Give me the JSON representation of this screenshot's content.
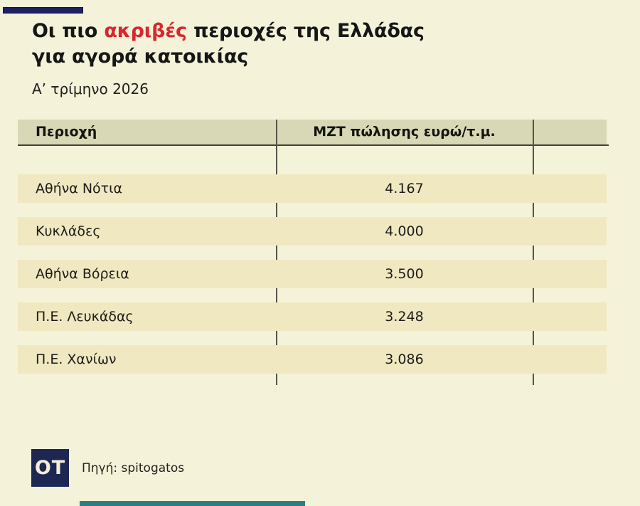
{
  "page": {
    "background": "#f4f2d9",
    "accent_navy": "#1b2161",
    "accent_red": "#d7282f",
    "accent_teal": "#2f7e7c",
    "stripe_color": "#f0e8c1",
    "header_band_color": "#d9d8b6"
  },
  "header": {
    "title_prefix": "Οι πιο",
    "title_highlight": "ακριβές",
    "title_suffix": "περιοχές της Ελλάδας",
    "title_line2": "για αγορά κατοικίας",
    "subtitle": "Α’ τρίμηνο 2026"
  },
  "table": {
    "columns": [
      "Περιοχή",
      "ΜΖΤ πώλησης ευρώ/τ.μ."
    ],
    "rows": [
      {
        "region": "Αθήνα Νότια",
        "price": "4.167"
      },
      {
        "region": "Κυκλάδες",
        "price": "4.000"
      },
      {
        "region": "Αθήνα Βόρεια",
        "price": "3.500"
      },
      {
        "region": "Π.Ε. Λευκάδας",
        "price": "3.248"
      },
      {
        "region": "Π.Ε. Χανίων",
        "price": "3.086"
      }
    ]
  },
  "footer": {
    "logo_text": "OT",
    "source": "Πηγή: spitogatos"
  },
  "chart_data": {
    "type": "table",
    "title": "Οι πιο ακριβές περιοχές της Ελλάδας για αγορά κατοικίας",
    "subtitle": "Α’ τρίμηνο 2026",
    "columns": [
      "Περιοχή",
      "ΜΖΤ πώλησης ευρώ/τ.μ."
    ],
    "categories": [
      "Αθήνα Νότια",
      "Κυκλάδες",
      "Αθήνα Βόρεια",
      "Π.Ε. Λευκάδας",
      "Π.Ε. Χανίων"
    ],
    "values": [
      4167,
      4000,
      3500,
      3248,
      3086
    ],
    "source": "Πηγή: spitogatos",
    "legend": false,
    "grid": false
  }
}
